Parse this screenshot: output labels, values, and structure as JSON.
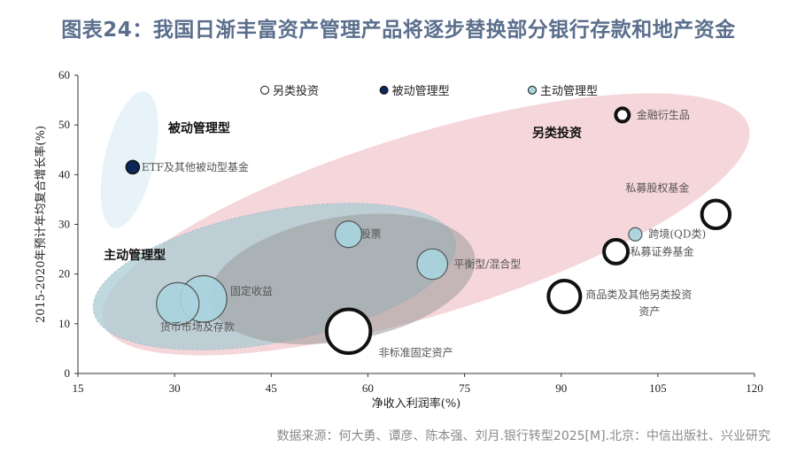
{
  "title": "图表24：我国日渐丰富资产管理产品将逐步替换部分银行存款和地产资金",
  "source": "数据来源：何大勇、谭彦、陈本强、刘月.银行转型2025[M].北京：中信出版社、兴业研究",
  "colors": {
    "passive": "#0d2557",
    "active": "#a8d4df",
    "alternative": "#ffffff",
    "passive_region": "#e6f2f9",
    "active_region": "#a9cbd4",
    "alternative_region": "#f3cfd3",
    "title": "#5b6f8d"
  },
  "chart_data": {
    "type": "scatter",
    "xlabel": "净收入利润率(%)",
    "ylabel": "2015-2020年预计年均复合增长率(%)",
    "xlim": [
      15,
      120
    ],
    "ylim": [
      0,
      60
    ],
    "xticks": [
      "15",
      "30",
      "45",
      "60",
      "75",
      "90",
      "105",
      "120"
    ],
    "yticks": [
      "0",
      "10",
      "20",
      "30",
      "40",
      "50",
      "60"
    ],
    "grid": false,
    "legend_position": "top",
    "legend": [
      {
        "name": "另类投资",
        "style": "alternative"
      },
      {
        "name": "被动管理型",
        "style": "passive"
      },
      {
        "name": "主动管理型",
        "style": "active"
      }
    ],
    "group_labels": [
      {
        "text": "被动管理型",
        "x": 29,
        "y": 48.5
      },
      {
        "text": "主动管理型",
        "x": 19,
        "y": 23
      },
      {
        "text": "另类投资",
        "x": 85.5,
        "y": 47.5
      }
    ],
    "points": [
      {
        "label": "ETF及其他被动型基金",
        "x": 23.5,
        "y": 41.5,
        "size": 1,
        "category": "passive"
      },
      {
        "label": "股票",
        "x": 57,
        "y": 28,
        "size": 2,
        "category": "active"
      },
      {
        "label": "平衡型/混合型",
        "x": 70,
        "y": 22,
        "size": 2.3,
        "category": "active"
      },
      {
        "label": "固定收益",
        "x": 34.5,
        "y": 15,
        "size": 3.5,
        "category": "active"
      },
      {
        "label": "货币市场及存款",
        "x": 30.5,
        "y": 14,
        "size": 3.2,
        "category": "active"
      },
      {
        "label": "非标准固定资产",
        "x": 57,
        "y": 8.5,
        "size": 3.3,
        "category": "alternative"
      },
      {
        "label": "商品类及其他另类投资资产",
        "x": 90.5,
        "y": 15.5,
        "size": 2.4,
        "category": "alternative"
      },
      {
        "label": "私募证券基金",
        "x": 98.5,
        "y": 24.5,
        "size": 1.8,
        "category": "alternative"
      },
      {
        "label": "跨境(QD类)",
        "x": 101.5,
        "y": 28,
        "size": 1,
        "category": "active"
      },
      {
        "label": "私募股权基金",
        "x": 114,
        "y": 32,
        "size": 2.1,
        "category": "alternative"
      },
      {
        "label": "金融衍生品",
        "x": 99.5,
        "y": 52,
        "size": 1,
        "category": "alternative"
      }
    ]
  }
}
